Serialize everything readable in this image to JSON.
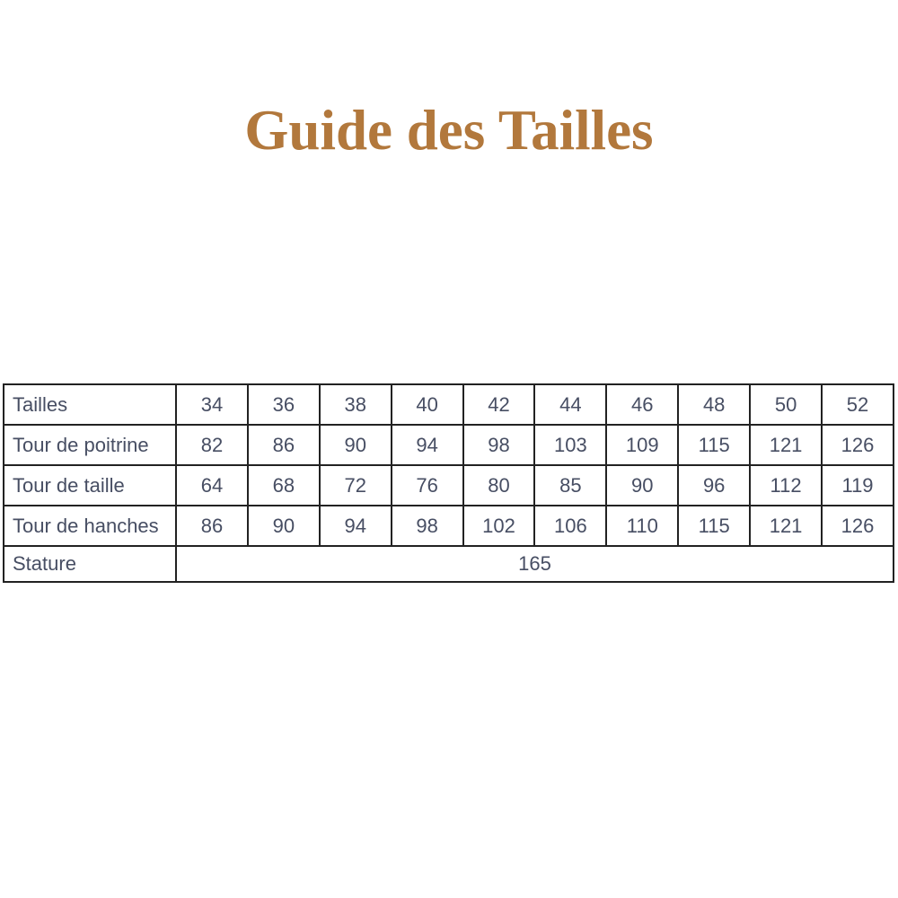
{
  "page": {
    "background_color": "#ffffff"
  },
  "header": {
    "title": "Guide des Tailles",
    "title_color": "#b2783c"
  },
  "size_table": {
    "text_color": "#474e63",
    "border_color": "#222222",
    "rows": [
      {
        "label": "Tailles",
        "values": [
          "34",
          "36",
          "38",
          "40",
          "42",
          "44",
          "46",
          "48",
          "50",
          "52"
        ]
      },
      {
        "label": "Tour de poitrine",
        "values": [
          "82",
          "86",
          "90",
          "94",
          "98",
          "103",
          "109",
          "115",
          "121",
          "126"
        ]
      },
      {
        "label": "Tour de taille",
        "values": [
          "64",
          "68",
          "72",
          "76",
          "80",
          "85",
          "90",
          "96",
          "112",
          "119"
        ]
      },
      {
        "label": "Tour de hanches",
        "values": [
          "86",
          "90",
          "94",
          "98",
          "102",
          "106",
          "110",
          "115",
          "121",
          "126"
        ]
      },
      {
        "label": "Stature",
        "merged_value": "165"
      }
    ]
  }
}
